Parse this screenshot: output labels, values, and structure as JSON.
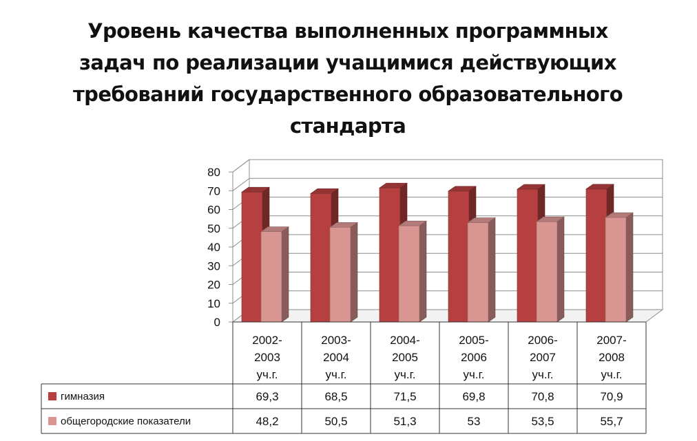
{
  "chart_data": {
    "type": "bar",
    "title_lines": [
      "Уровень качества выполненных программных",
      "задач  по реализации учащимися действующих",
      "требований государственного образовательного",
      "стандарта"
    ],
    "categories": [
      [
        "2002-",
        "2003",
        "уч.г."
      ],
      [
        "2003-",
        "2004",
        "уч.г."
      ],
      [
        "2004-",
        "2005",
        "уч.г."
      ],
      [
        "2005-",
        "2006",
        "уч.г."
      ],
      [
        "2006-",
        "2007",
        "уч.г."
      ],
      [
        "2007-",
        "2008",
        "уч.г."
      ]
    ],
    "series": [
      {
        "name": "гимназия",
        "values": [
          69.3,
          68.5,
          71.5,
          69.8,
          70.8,
          70.9
        ],
        "labels": [
          "69,3",
          "68,5",
          "71,5",
          "69,8",
          "70,8",
          "70,9"
        ],
        "color": "#b5403f"
      },
      {
        "name": "общегородские показатели",
        "values": [
          48.2,
          50.5,
          51.3,
          53,
          53.5,
          55.7
        ],
        "labels": [
          "48,2",
          "50,5",
          "51,3",
          "53",
          "53,5",
          "55,7"
        ],
        "color": "#d99592"
      }
    ],
    "ylim": [
      0,
      80
    ],
    "yticks": [
      "0",
      "10",
      "20",
      "30",
      "40",
      "50",
      "60",
      "70",
      "80"
    ],
    "grid": true,
    "legend": "data-table"
  }
}
